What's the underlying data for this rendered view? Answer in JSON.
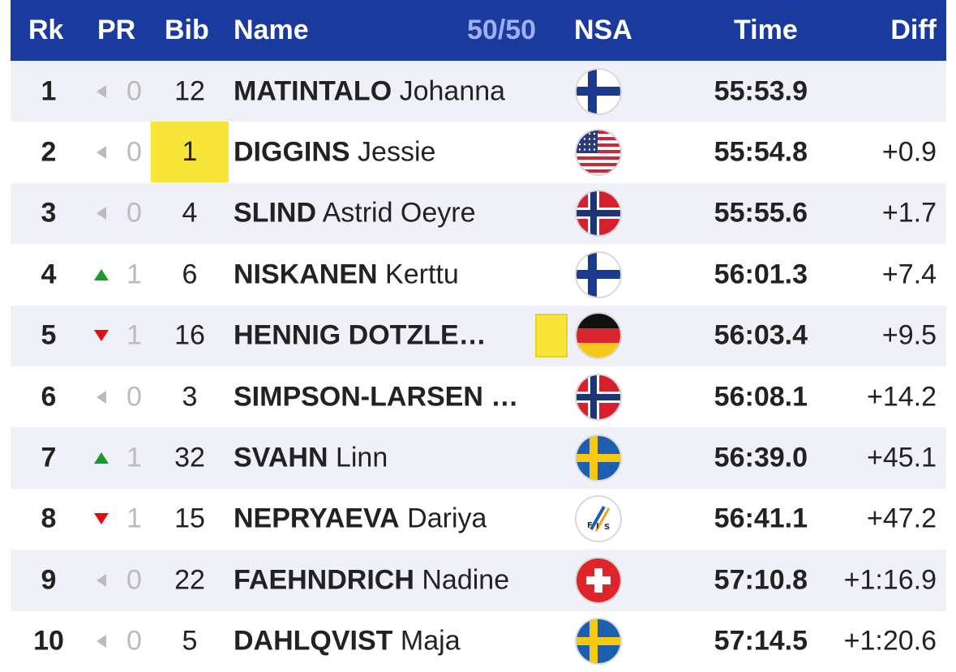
{
  "header": {
    "rk": "Rk",
    "pr": "PR",
    "bib": "Bib",
    "name": "Name",
    "count": "50/50",
    "nsa": "NSA",
    "time": "Time",
    "diff": "Diff"
  },
  "colors": {
    "header_bg": "#1b3a9e",
    "bib_highlight": "#f7e53a",
    "up": "#1a9a2a",
    "down": "#e01010",
    "neutral": "#bbbbbb"
  },
  "rows": [
    {
      "rk": "1",
      "trend": "neutral",
      "pr": "0",
      "bib": "12",
      "last": "MATINTALO",
      "first": "Johanna",
      "flag": "finland",
      "time": "55:53.9",
      "diff": ""
    },
    {
      "rk": "2",
      "trend": "neutral",
      "pr": "0",
      "bib": "1",
      "last": "DIGGINS",
      "first": "Jessie",
      "flag": "usa",
      "time": "55:54.8",
      "diff": "+0.9"
    },
    {
      "rk": "3",
      "trend": "neutral",
      "pr": "0",
      "bib": "4",
      "last": "SLIND",
      "first": "Astrid Oeyre",
      "flag": "norway",
      "time": "55:55.6",
      "diff": "+1.7"
    },
    {
      "rk": "4",
      "trend": "up",
      "pr": "1",
      "bib": "6",
      "last": "NISKANEN",
      "first": "Kerttu",
      "flag": "finland",
      "time": "56:01.3",
      "diff": "+7.4"
    },
    {
      "rk": "5",
      "trend": "down",
      "pr": "1",
      "bib": "16",
      "last": "HENNIG DOTZLE…",
      "first": "",
      "flag": "germany",
      "time": "56:03.4",
      "diff": "+9.5"
    },
    {
      "rk": "6",
      "trend": "neutral",
      "pr": "0",
      "bib": "3",
      "last": "SIMPSON-LARSEN …",
      "first": "",
      "flag": "norway",
      "time": "56:08.1",
      "diff": "+14.2"
    },
    {
      "rk": "7",
      "trend": "up",
      "pr": "1",
      "bib": "32",
      "last": "SVAHN",
      "first": "Linn",
      "flag": "sweden",
      "time": "56:39.0",
      "diff": "+45.1"
    },
    {
      "rk": "8",
      "trend": "down",
      "pr": "1",
      "bib": "15",
      "last": "NEPRYAEVA",
      "first": "Dariya",
      "flag": "fis",
      "time": "56:41.1",
      "diff": "+47.2"
    },
    {
      "rk": "9",
      "trend": "neutral",
      "pr": "0",
      "bib": "22",
      "last": "FAEHNDRICH",
      "first": "Nadine",
      "flag": "switzerland",
      "time": "57:10.8",
      "diff": "+1:16.9"
    },
    {
      "rk": "10",
      "trend": "neutral",
      "pr": "0",
      "bib": "5",
      "last": "DAHLQVIST",
      "first": "Maja",
      "flag": "sweden",
      "time": "57:14.5",
      "diff": "+1:20.6"
    }
  ],
  "highlights": {
    "yellow_bib_row": 1,
    "yellow_bib_mark_row": 4
  }
}
